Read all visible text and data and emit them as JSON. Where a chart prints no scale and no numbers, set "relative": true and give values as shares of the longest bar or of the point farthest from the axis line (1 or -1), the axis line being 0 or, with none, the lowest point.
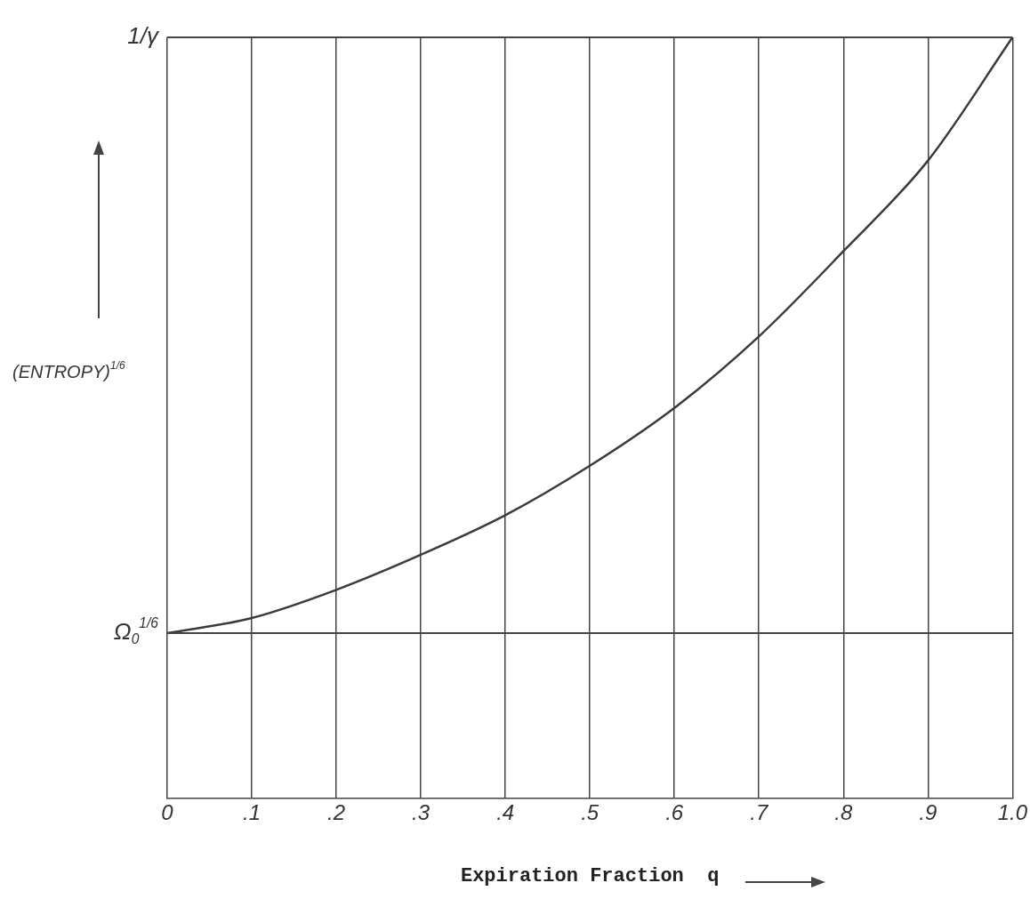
{
  "chart_data": {
    "type": "line",
    "relative": true,
    "xlabel": "Expiration Fraction  q",
    "ylabel": "(ENTROPY)$^{1/6}$",
    "x": [
      0,
      0.1,
      0.2,
      0.3,
      0.4,
      0.5,
      0.6,
      0.7,
      0.8,
      0.9,
      1.0
    ],
    "series": [
      {
        "color": "#3a3a3a",
        "values": [
          0.217,
          0.237,
          0.274,
          0.32,
          0.372,
          0.437,
          0.513,
          0.607,
          0.719,
          0.838,
          1
        ]
      }
    ],
    "xlim": [
      0,
      1.0
    ],
    "xticks": [
      0,
      {
        "value": 0.1,
        "label": ".1"
      },
      {
        "value": 0.2,
        "label": ".2"
      },
      {
        "value": 0.3,
        "label": ".3"
      },
      {
        "value": 0.4,
        "label": ".4"
      },
      {
        "value": 0.5,
        "label": ".5"
      },
      {
        "value": 0.6,
        "label": ".6"
      },
      {
        "value": 0.7,
        "label": ".7"
      },
      {
        "value": 0.8,
        "label": ".8"
      },
      {
        "value": 0.9,
        "label": ".9"
      },
      {
        "value": 1.0,
        "label": "1.0"
      }
    ],
    "ref_lines": [
      {
        "axis": "y",
        "value": 0.217,
        "label": "Ω$_{0}$$^{1/6}$"
      },
      {
        "axis": "y",
        "value": 1,
        "label": "1/γ"
      }
    ],
    "grid": "x",
    "legend": false,
    "marker": "none",
    "line_style": "solid"
  }
}
